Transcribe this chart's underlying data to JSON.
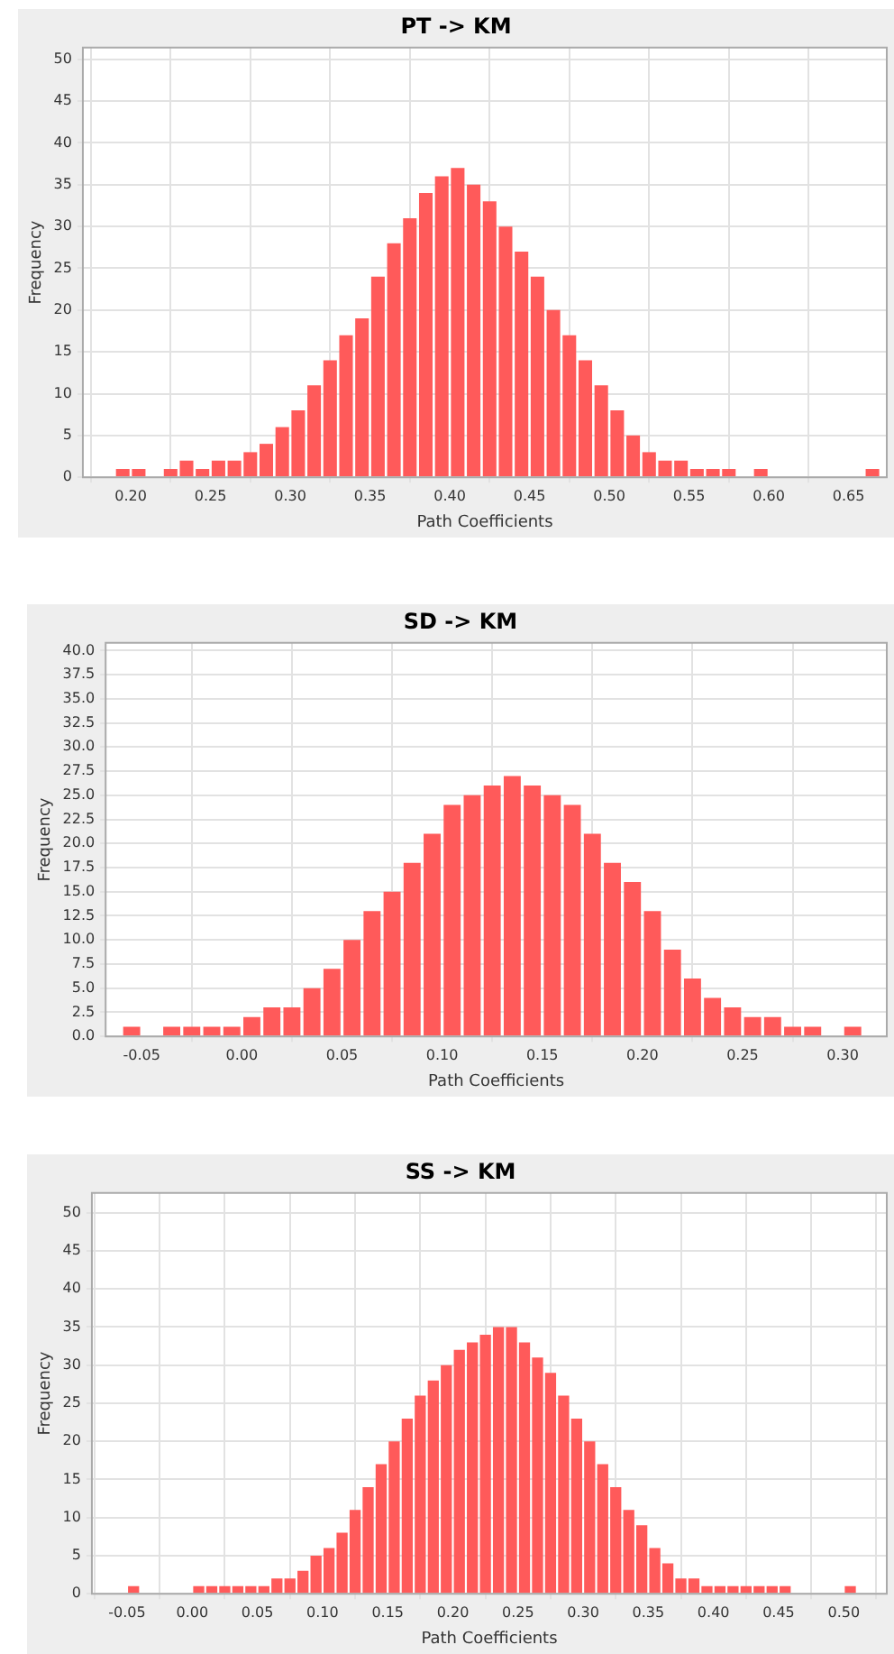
{
  "chart_data": [
    {
      "type": "histogram",
      "title": "PT -> KM",
      "xlabel": "Path Coefficients",
      "ylabel": "Frequency",
      "color": "#ff5a5a",
      "grid": true,
      "bins": [
        0.19,
        0.2,
        0.21,
        0.22,
        0.23,
        0.24,
        0.25,
        0.26,
        0.27,
        0.28,
        0.29,
        0.3,
        0.31,
        0.32,
        0.33,
        0.34,
        0.35,
        0.36,
        0.37,
        0.38,
        0.39,
        0.4,
        0.41,
        0.42,
        0.43,
        0.44,
        0.45,
        0.46,
        0.47,
        0.48,
        0.49,
        0.5,
        0.51,
        0.52,
        0.53,
        0.54,
        0.55,
        0.56,
        0.57,
        0.58,
        0.59,
        0.6,
        0.61,
        0.62,
        0.63,
        0.64,
        0.65,
        0.66,
        0.67
      ],
      "values": [
        1,
        1,
        0,
        1,
        2,
        1,
        2,
        2,
        3,
        4,
        6,
        8,
        11,
        14,
        17,
        19,
        24,
        28,
        31,
        34,
        36,
        37,
        35,
        33,
        30,
        27,
        24,
        20,
        17,
        14,
        11,
        8,
        5,
        3,
        2,
        2,
        1,
        1,
        1,
        0,
        1,
        0,
        0,
        0,
        0,
        0,
        0,
        1
      ],
      "xlim": [
        0.17,
        0.674
      ],
      "ylim": [
        0,
        51.4
      ],
      "xticks": [
        {
          "value": 0.2,
          "label": "0.20"
        },
        {
          "value": 0.25,
          "label": "0.25"
        },
        {
          "value": 0.3,
          "label": "0.30"
        },
        {
          "value": 0.35,
          "label": "0.35"
        },
        {
          "value": 0.4,
          "label": "0.40"
        },
        {
          "value": 0.45,
          "label": "0.45"
        },
        {
          "value": 0.5,
          "label": "0.50"
        },
        {
          "value": 0.55,
          "label": "0.55"
        },
        {
          "value": 0.6,
          "label": "0.60"
        },
        {
          "value": 0.65,
          "label": "0.65"
        }
      ],
      "yticks": [
        0,
        5,
        10,
        15,
        20,
        25,
        30,
        35,
        40,
        45,
        50
      ]
    },
    {
      "type": "histogram",
      "title": "SD -> KM",
      "xlabel": "Path Coefficients",
      "ylabel": "Frequency",
      "color": "#ff5a5a",
      "grid": true,
      "bins": [
        -0.06,
        -0.05,
        -0.04,
        -0.03,
        -0.02,
        -0.01,
        0,
        0.01,
        0.02,
        0.03,
        0.04,
        0.05,
        0.06,
        0.07,
        0.08,
        0.09,
        0.1,
        0.11,
        0.12,
        0.13,
        0.14,
        0.15,
        0.16,
        0.17,
        0.18,
        0.19,
        0.2,
        0.21,
        0.22,
        0.23,
        0.24,
        0.25,
        0.26,
        0.27,
        0.28,
        0.29,
        0.3,
        0.31,
        0.32
      ],
      "values": [
        1,
        0,
        1,
        1,
        1,
        1,
        2,
        3,
        3,
        5,
        7,
        10,
        13,
        15,
        18,
        21,
        24,
        25,
        26,
        27,
        26,
        25,
        24,
        21,
        18,
        16,
        13,
        9,
        6,
        4,
        3,
        2,
        2,
        1,
        1,
        0,
        1,
        0
      ],
      "xlim": [
        -0.068,
        0.322
      ],
      "ylim": [
        0,
        40.8
      ],
      "xticks": [
        {
          "value": -0.05,
          "label": "-0.05"
        },
        {
          "value": 0,
          "label": "0.00"
        },
        {
          "value": 0.05,
          "label": "0.05"
        },
        {
          "value": 0.1,
          "label": "0.10"
        },
        {
          "value": 0.15,
          "label": "0.15"
        },
        {
          "value": 0.2,
          "label": "0.20"
        },
        {
          "value": 0.25,
          "label": "0.25"
        },
        {
          "value": 0.3,
          "label": "0.30"
        }
      ],
      "yticks": [
        {
          "value": 0,
          "label": "0.0"
        },
        {
          "value": 2.5,
          "label": "2.5"
        },
        {
          "value": 5,
          "label": "5.0"
        },
        {
          "value": 7.5,
          "label": "7.5"
        },
        {
          "value": 10,
          "label": "10.0"
        },
        {
          "value": 12.5,
          "label": "12.5"
        },
        {
          "value": 15,
          "label": "15.0"
        },
        {
          "value": 17.5,
          "label": "17.5"
        },
        {
          "value": 20,
          "label": "20.0"
        },
        {
          "value": 22.5,
          "label": "22.5"
        },
        {
          "value": 25,
          "label": "25.0"
        },
        {
          "value": 27.5,
          "label": "27.5"
        },
        {
          "value": 30,
          "label": "30.0"
        },
        {
          "value": 32.5,
          "label": "32.5"
        },
        {
          "value": 35,
          "label": "35.0"
        },
        {
          "value": 37.5,
          "label": "37.5"
        },
        {
          "value": 40,
          "label": "40.0"
        }
      ]
    },
    {
      "type": "histogram",
      "title": "SS -> KM",
      "xlabel": "Path Coefficients",
      "ylabel": "Frequency",
      "color": "#ff5a5a",
      "grid": true,
      "bins": [
        -0.06,
        -0.05,
        -0.04,
        -0.03,
        -0.02,
        -0.01,
        0,
        0.01,
        0.02,
        0.03,
        0.04,
        0.05,
        0.06,
        0.07,
        0.08,
        0.09,
        0.1,
        0.11,
        0.12,
        0.13,
        0.14,
        0.15,
        0.16,
        0.17,
        0.18,
        0.19,
        0.2,
        0.21,
        0.22,
        0.23,
        0.24,
        0.25,
        0.26,
        0.27,
        0.28,
        0.29,
        0.3,
        0.31,
        0.32,
        0.33,
        0.34,
        0.35,
        0.36,
        0.37,
        0.38,
        0.39,
        0.4,
        0.41,
        0.42,
        0.43,
        0.44,
        0.45,
        0.46,
        0.47,
        0.48,
        0.49,
        0.5,
        0.51,
        0.52
      ],
      "values": [
        0,
        1,
        0,
        0,
        0,
        0,
        1,
        1,
        1,
        1,
        1,
        1,
        2,
        2,
        3,
        5,
        6,
        8,
        11,
        14,
        17,
        20,
        23,
        26,
        28,
        30,
        32,
        33,
        34,
        35,
        35,
        33,
        31,
        29,
        26,
        23,
        20,
        17,
        14,
        11,
        9,
        6,
        4,
        2,
        2,
        1,
        1,
        1,
        1,
        1,
        1,
        1,
        0,
        0,
        0,
        0,
        1,
        0
      ],
      "xlim": [
        -0.077,
        0.533
      ],
      "ylim": [
        0,
        52.6
      ],
      "xticks": [
        {
          "value": -0.05,
          "label": "-0.05"
        },
        {
          "value": 0,
          "label": "0.00"
        },
        {
          "value": 0.05,
          "label": "0.05"
        },
        {
          "value": 0.1,
          "label": "0.10"
        },
        {
          "value": 0.15,
          "label": "0.15"
        },
        {
          "value": 0.2,
          "label": "0.20"
        },
        {
          "value": 0.25,
          "label": "0.25"
        },
        {
          "value": 0.3,
          "label": "0.30"
        },
        {
          "value": 0.35,
          "label": "0.35"
        },
        {
          "value": 0.4,
          "label": "0.40"
        },
        {
          "value": 0.45,
          "label": "0.45"
        },
        {
          "value": 0.5,
          "label": "0.50"
        }
      ],
      "yticks": [
        0,
        5,
        10,
        15,
        20,
        25,
        30,
        35,
        40,
        45,
        50
      ]
    }
  ]
}
